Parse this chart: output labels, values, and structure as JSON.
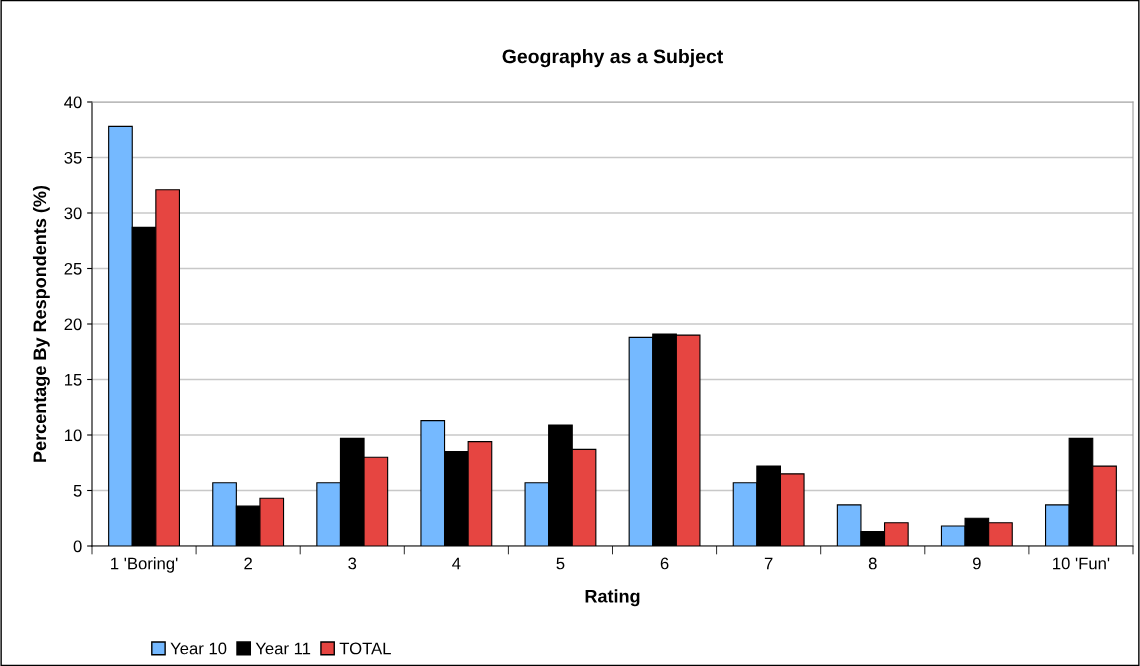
{
  "chart_data": {
    "type": "bar",
    "title": "Geography as a Subject",
    "xlabel": "Rating",
    "ylabel": "Percentage By Respondents (%)",
    "categories": [
      "1 'Boring'",
      "2",
      "3",
      "4",
      "5",
      "6",
      "7",
      "8",
      "9",
      "10 'Fun'"
    ],
    "series": [
      {
        "name": "Year 10",
        "color": "#75b9ff",
        "values": [
          37.8,
          5.7,
          5.7,
          11.3,
          5.7,
          18.8,
          5.7,
          3.7,
          1.8,
          3.7
        ]
      },
      {
        "name": "Year 11",
        "color": "#000000",
        "values": [
          28.7,
          3.6,
          9.7,
          8.5,
          10.9,
          19.1,
          7.2,
          1.3,
          2.5,
          9.7
        ]
      },
      {
        "name": "TOTAL",
        "color": "#e64541",
        "values": [
          32.1,
          4.3,
          8.0,
          9.4,
          8.7,
          19.0,
          6.5,
          2.1,
          2.1,
          7.2
        ]
      }
    ],
    "ylim": [
      0,
      40
    ],
    "yticks": [
      0,
      5,
      10,
      15,
      20,
      25,
      30,
      35,
      40
    ],
    "grid": "y",
    "legend": "bottom left"
  }
}
